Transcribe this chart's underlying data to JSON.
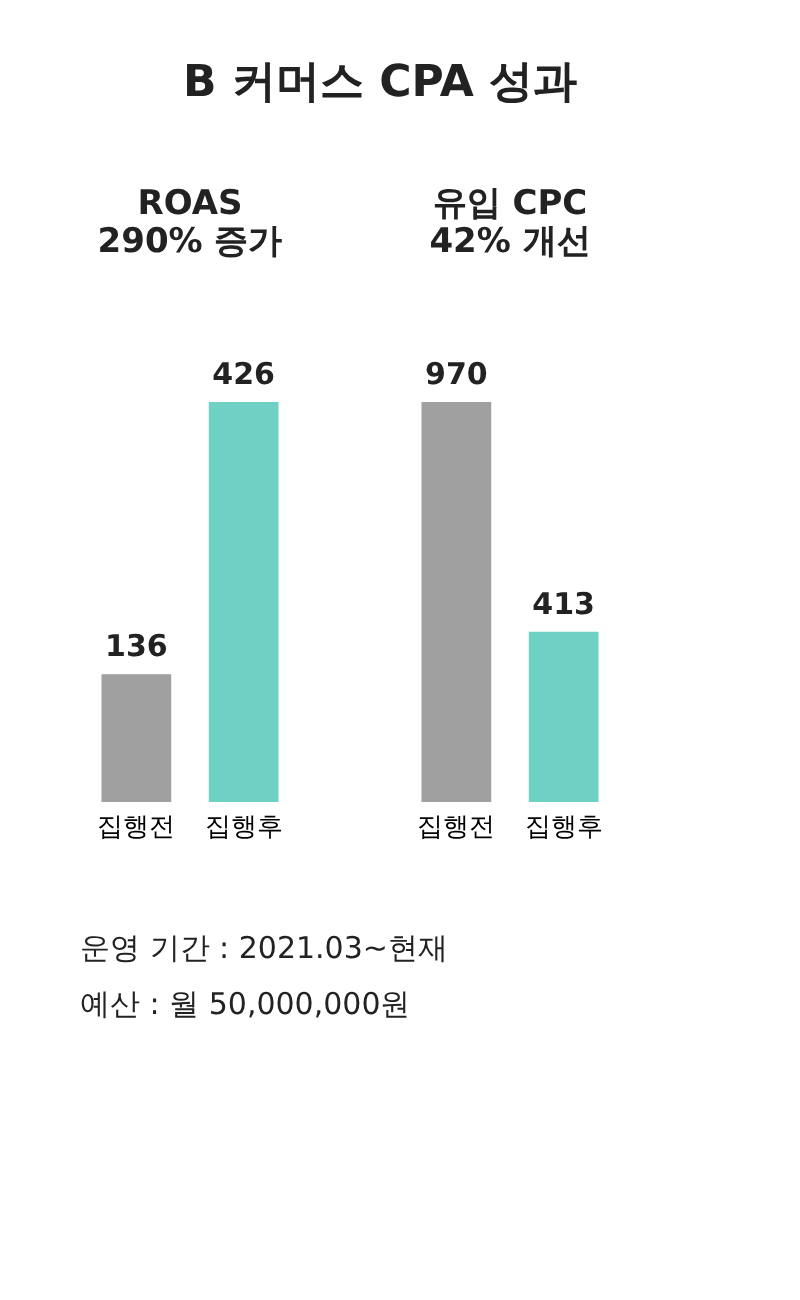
{
  "chart_data": [
    {
      "type": "other",
      "title": "B 커머스 CPA 성과",
      "annotations": [
        "운영 기간 : 2021.03~현재",
        "예산 : 월 50,000,000원"
      ]
    },
    {
      "type": "bar",
      "title": "ROAS\n290% 증가",
      "categories": [
        "집행전",
        "집행후"
      ],
      "values": [
        136,
        426
      ],
      "colors": [
        "#a0a0a0",
        "#6fd1c4"
      ],
      "ylim": [
        0,
        426
      ],
      "data_labels": true
    },
    {
      "type": "bar",
      "title": "유입 CPC\n42% 개선",
      "categories": [
        "집행전",
        "집행후"
      ],
      "values": [
        970,
        413
      ],
      "colors": [
        "#a0a0a0",
        "#6fd1c4"
      ],
      "ylim": [
        0,
        970
      ],
      "data_labels": true
    }
  ]
}
